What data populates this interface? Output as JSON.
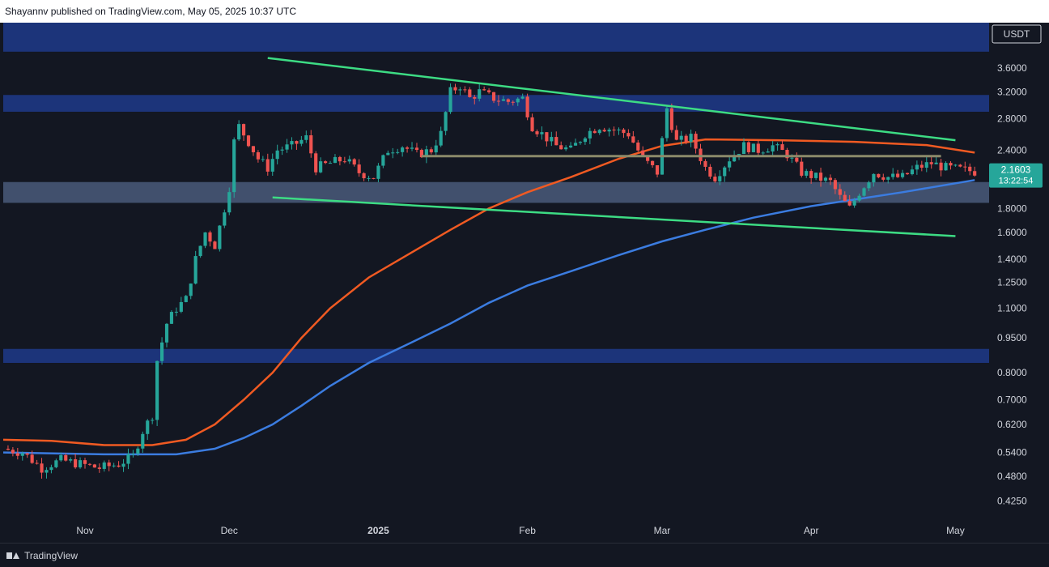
{
  "header": {
    "published_text": "Shayannv published on TradingView.com, May 05, 2025 10:37 UTC"
  },
  "footer": {
    "brand": "TradingView"
  },
  "chart_data": {
    "type": "candlestick",
    "currency_label": "USDT",
    "last_price_label": "2.1603",
    "countdown_label": "13:22:54",
    "y_scale": "log",
    "ylim": [
      0.39,
      4.5
    ],
    "y_ticks": [
      {
        "value": 3.6,
        "label": "3.6000"
      },
      {
        "value": 3.2,
        "label": "3.2000"
      },
      {
        "value": 2.8,
        "label": "2.8000"
      },
      {
        "value": 2.4,
        "label": "2.4000"
      },
      {
        "value": 1.8,
        "label": "1.8000"
      },
      {
        "value": 1.6,
        "label": "1.6000"
      },
      {
        "value": 1.4,
        "label": "1.4000"
      },
      {
        "value": 1.25,
        "label": "1.2500"
      },
      {
        "value": 1.1,
        "label": "1.1000"
      },
      {
        "value": 0.95,
        "label": "0.9500"
      },
      {
        "value": 0.8,
        "label": "0.8000"
      },
      {
        "value": 0.7,
        "label": "0.7000"
      },
      {
        "value": 0.62,
        "label": "0.6200"
      },
      {
        "value": 0.54,
        "label": "0.5400"
      },
      {
        "value": 0.48,
        "label": "0.4800"
      },
      {
        "value": 0.425,
        "label": "0.4250"
      }
    ],
    "x_range": [
      "2024-10-15",
      "2025-05-08"
    ],
    "x_ticks": [
      {
        "date": "2024-11-01",
        "label": "Nov",
        "bold": false
      },
      {
        "date": "2024-12-01",
        "label": "Dec",
        "bold": false
      },
      {
        "date": "2025-01-01",
        "label": "2025",
        "bold": true
      },
      {
        "date": "2025-02-01",
        "label": "Feb",
        "bold": false
      },
      {
        "date": "2025-03-01",
        "label": "Mar",
        "bold": false
      },
      {
        "date": "2025-04-01",
        "label": "Apr",
        "bold": false
      },
      {
        "date": "2025-05-01",
        "label": "May",
        "bold": false
      }
    ],
    "zones": [
      {
        "low": 3.9,
        "high": 4.5,
        "color": "#1e3a8a"
      },
      {
        "low": 2.9,
        "high": 3.15,
        "color": "#1e3a8a"
      },
      {
        "low": 1.85,
        "high": 2.05,
        "color": "#4a5a7a"
      },
      {
        "low": 0.84,
        "high": 0.9,
        "color": "#1e3a8a"
      }
    ],
    "trendlines": [
      {
        "color": "#3ddc84",
        "from": {
          "date": "2024-12-09",
          "value": 3.78
        },
        "to": {
          "date": "2025-05-01",
          "value": 2.52
        }
      },
      {
        "color": "#3ddc84",
        "from": {
          "date": "2024-12-10",
          "value": 1.9
        },
        "to": {
          "date": "2025-05-01",
          "value": 1.57
        }
      },
      {
        "color": "#8b8a6a",
        "from": {
          "date": "2025-01-10",
          "value": 2.33
        },
        "to": {
          "date": "2025-04-28",
          "value": 2.33
        }
      }
    ],
    "moving_averages": [
      {
        "color": "#f05a22",
        "points": [
          [
            "2024-10-15",
            0.575
          ],
          [
            "2024-10-25",
            0.572
          ],
          [
            "2024-11-05",
            0.56
          ],
          [
            "2024-11-15",
            0.56
          ],
          [
            "2024-11-22",
            0.575
          ],
          [
            "2024-11-28",
            0.62
          ],
          [
            "2024-12-04",
            0.7
          ],
          [
            "2024-12-10",
            0.8
          ],
          [
            "2024-12-16",
            0.95
          ],
          [
            "2024-12-22",
            1.1
          ],
          [
            "2024-12-30",
            1.28
          ],
          [
            "2025-01-08",
            1.45
          ],
          [
            "2025-01-16",
            1.62
          ],
          [
            "2025-01-24",
            1.8
          ],
          [
            "2025-02-01",
            1.95
          ],
          [
            "2025-02-10",
            2.1
          ],
          [
            "2025-02-20",
            2.3
          ],
          [
            "2025-03-01",
            2.45
          ],
          [
            "2025-03-10",
            2.53
          ],
          [
            "2025-03-25",
            2.52
          ],
          [
            "2025-04-10",
            2.5
          ],
          [
            "2025-04-25",
            2.46
          ],
          [
            "2025-05-05",
            2.37
          ]
        ]
      },
      {
        "color": "#3b7ce0",
        "points": [
          [
            "2024-10-15",
            0.54
          ],
          [
            "2024-11-05",
            0.535
          ],
          [
            "2024-11-20",
            0.535
          ],
          [
            "2024-11-28",
            0.55
          ],
          [
            "2024-12-04",
            0.58
          ],
          [
            "2024-12-10",
            0.62
          ],
          [
            "2024-12-16",
            0.68
          ],
          [
            "2024-12-22",
            0.75
          ],
          [
            "2024-12-30",
            0.84
          ],
          [
            "2025-01-08",
            0.93
          ],
          [
            "2025-01-16",
            1.02
          ],
          [
            "2025-01-24",
            1.13
          ],
          [
            "2025-02-01",
            1.23
          ],
          [
            "2025-02-10",
            1.32
          ],
          [
            "2025-02-20",
            1.43
          ],
          [
            "2025-03-01",
            1.53
          ],
          [
            "2025-03-10",
            1.62
          ],
          [
            "2025-03-20",
            1.72
          ],
          [
            "2025-04-01",
            1.82
          ],
          [
            "2025-04-10",
            1.88
          ],
          [
            "2025-04-20",
            1.95
          ],
          [
            "2025-05-05",
            2.07
          ]
        ]
      }
    ],
    "price_path": [
      [
        "2024-10-15",
        0.55
      ],
      [
        "2024-10-19",
        0.54
      ],
      [
        "2024-10-23",
        0.5
      ],
      [
        "2024-10-27",
        0.52
      ],
      [
        "2024-10-31",
        0.51
      ],
      [
        "2024-11-04",
        0.5
      ],
      [
        "2024-11-08",
        0.51
      ],
      [
        "2024-11-11",
        0.53
      ],
      [
        "2024-11-13",
        0.6
      ],
      [
        "2024-11-15",
        0.65
      ],
      [
        "2024-11-16",
        0.85
      ],
      [
        "2024-11-18",
        1.02
      ],
      [
        "2024-11-20",
        1.1
      ],
      [
        "2024-11-22",
        1.15
      ],
      [
        "2024-11-24",
        1.4
      ],
      [
        "2024-11-26",
        1.6
      ],
      [
        "2024-11-28",
        1.5
      ],
      [
        "2024-11-30",
        1.8
      ],
      [
        "2024-12-01",
        2.0
      ],
      [
        "2024-12-02",
        2.5
      ],
      [
        "2024-12-03",
        2.7
      ],
      [
        "2024-12-05",
        2.5
      ],
      [
        "2024-12-07",
        2.3
      ],
      [
        "2024-12-09",
        2.2
      ],
      [
        "2024-12-11",
        2.4
      ],
      [
        "2024-12-14",
        2.45
      ],
      [
        "2024-12-17",
        2.55
      ],
      [
        "2024-12-19",
        2.2
      ],
      [
        "2024-12-22",
        2.25
      ],
      [
        "2024-12-25",
        2.3
      ],
      [
        "2024-12-28",
        2.15
      ],
      [
        "2024-12-31",
        2.1
      ],
      [
        "2025-01-03",
        2.4
      ],
      [
        "2025-01-06",
        2.45
      ],
      [
        "2025-01-09",
        2.35
      ],
      [
        "2025-01-12",
        2.4
      ],
      [
        "2025-01-14",
        2.6
      ],
      [
        "2025-01-16",
        3.2
      ],
      [
        "2025-01-18",
        3.3
      ],
      [
        "2025-01-20",
        3.1
      ],
      [
        "2025-01-22",
        3.2
      ],
      [
        "2025-01-25",
        3.1
      ],
      [
        "2025-01-28",
        3.05
      ],
      [
        "2025-01-31",
        3.1
      ],
      [
        "2025-02-02",
        2.7
      ],
      [
        "2025-02-04",
        2.6
      ],
      [
        "2025-02-07",
        2.45
      ],
      [
        "2025-02-10",
        2.4
      ],
      [
        "2025-02-13",
        2.6
      ],
      [
        "2025-02-16",
        2.7
      ],
      [
        "2025-02-19",
        2.65
      ],
      [
        "2025-02-22",
        2.6
      ],
      [
        "2025-02-25",
        2.3
      ],
      [
        "2025-02-28",
        2.15
      ],
      [
        "2025-03-02",
        2.95
      ],
      [
        "2025-03-04",
        2.5
      ],
      [
        "2025-03-07",
        2.55
      ],
      [
        "2025-03-10",
        2.2
      ],
      [
        "2025-03-12",
        2.1
      ],
      [
        "2025-03-15",
        2.3
      ],
      [
        "2025-03-18",
        2.45
      ],
      [
        "2025-03-21",
        2.4
      ],
      [
        "2025-03-24",
        2.45
      ],
      [
        "2025-03-27",
        2.35
      ],
      [
        "2025-03-30",
        2.15
      ],
      [
        "2025-04-02",
        2.1
      ],
      [
        "2025-04-05",
        2.05
      ],
      [
        "2025-04-07",
        1.9
      ],
      [
        "2025-04-09",
        1.8
      ],
      [
        "2025-04-11",
        1.95
      ],
      [
        "2025-04-14",
        2.15
      ],
      [
        "2025-04-17",
        2.1
      ],
      [
        "2025-04-20",
        2.1
      ],
      [
        "2025-04-23",
        2.2
      ],
      [
        "2025-04-26",
        2.25
      ],
      [
        "2025-04-29",
        2.2
      ],
      [
        "2025-05-02",
        2.18
      ],
      [
        "2025-05-05",
        2.16
      ]
    ],
    "candle_colors": {
      "up": "#26a69a",
      "down": "#ef5350"
    },
    "price_label_color": "#26a69a"
  }
}
